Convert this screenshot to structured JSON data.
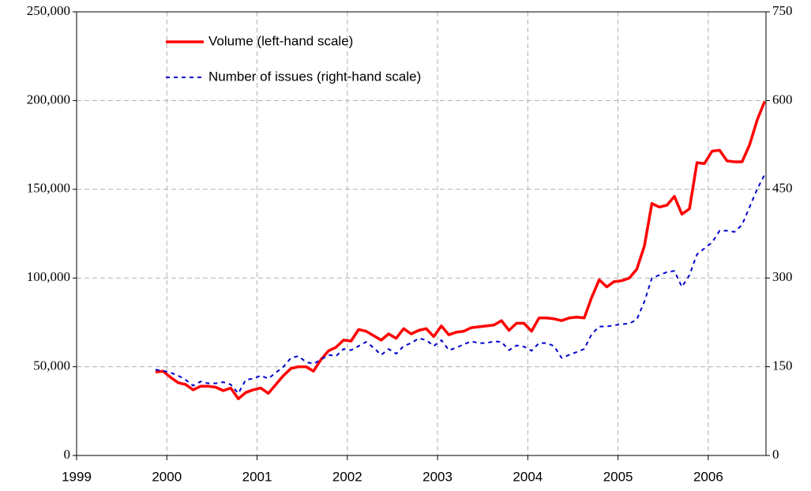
{
  "chart_data": {
    "type": "line",
    "x": [
      1999.875,
      1999.958,
      2000.042,
      2000.125,
      2000.208,
      2000.292,
      2000.375,
      2000.458,
      2000.542,
      2000.625,
      2000.708,
      2000.792,
      2000.875,
      2000.958,
      2001.042,
      2001.125,
      2001.208,
      2001.292,
      2001.375,
      2001.458,
      2001.542,
      2001.625,
      2001.708,
      2001.792,
      2001.875,
      2001.958,
      2002.042,
      2002.125,
      2002.208,
      2002.292,
      2002.375,
      2002.458,
      2002.542,
      2002.625,
      2002.708,
      2002.792,
      2002.875,
      2002.958,
      2003.042,
      2003.125,
      2003.208,
      2003.292,
      2003.375,
      2003.458,
      2003.542,
      2003.625,
      2003.708,
      2003.792,
      2003.875,
      2003.958,
      2004.042,
      2004.125,
      2004.208,
      2004.292,
      2004.375,
      2004.458,
      2004.542,
      2004.625,
      2004.708,
      2004.792,
      2004.875,
      2004.958,
      2005.042,
      2005.125,
      2005.208,
      2005.292,
      2005.375,
      2005.458,
      2005.542,
      2005.625,
      2005.708,
      2005.792,
      2005.875,
      2005.958,
      2006.042,
      2006.125,
      2006.208,
      2006.292,
      2006.375,
      2006.458,
      2006.542,
      2006.625
    ],
    "series": [
      {
        "name": "Volume (left-hand scale)",
        "color": "#ff0000",
        "dash": false,
        "values": [
          47000,
          47500,
          44000,
          41000,
          40000,
          37000,
          39000,
          39000,
          38500,
          36500,
          38000,
          32000,
          35500,
          37000,
          38000,
          35000,
          40000,
          45000,
          49000,
          50000,
          50000,
          47500,
          54000,
          59000,
          61000,
          65000,
          64500,
          71000,
          70000,
          67500,
          65000,
          68500,
          66000,
          71500,
          68500,
          70500,
          71500,
          67000,
          73000,
          68000,
          69500,
          70000,
          72000,
          72500,
          73000,
          73500,
          76000,
          70500,
          74500,
          74500,
          70000,
          77500,
          77500,
          77000,
          76000,
          77500,
          78000,
          77500,
          89000,
          99000,
          95000,
          98000,
          98500,
          100000,
          105000,
          118000,
          142000,
          140000,
          141000,
          146000,
          136000,
          139000,
          165000,
          164500,
          171500,
          172000,
          166000,
          165500,
          165500,
          175000,
          189000,
          199500
        ]
      },
      {
        "name": "Number of issues (right-hand scale)",
        "color": "#0000cc",
        "dash": true,
        "axis": "y2",
        "values": [
          145,
          143,
          140,
          135,
          128,
          118,
          125,
          122,
          122,
          124,
          120,
          105,
          128,
          130,
          135,
          130,
          140,
          150,
          165,
          168,
          158,
          155,
          162,
          170,
          168,
          180,
          178,
          185,
          192,
          182,
          170,
          180,
          172,
          185,
          190,
          198,
          195,
          185,
          195,
          178,
          182,
          188,
          193,
          190,
          190,
          193,
          192,
          178,
          186,
          184,
          177,
          190,
          190,
          185,
          165,
          170,
          175,
          180,
          205,
          218,
          218,
          220,
          222,
          223,
          230,
          260,
          300,
          305,
          310,
          312,
          285,
          305,
          340,
          350,
          360,
          380,
          380,
          378,
          390,
          420,
          450,
          475
        ]
      }
    ],
    "xlim": [
      1999,
      2006.64
    ],
    "xticks": [
      1999,
      2000,
      2001,
      2002,
      2003,
      2004,
      2005,
      2006
    ],
    "ylim": [
      0,
      250000
    ],
    "yticks": [
      0,
      {
        "value": 50000,
        "label": "50,000"
      },
      {
        "value": 100000,
        "label": "100,000"
      },
      {
        "value": 150000,
        "label": "150,000"
      },
      {
        "value": 200000,
        "label": "200,000"
      },
      {
        "value": 250000,
        "label": "250,000"
      }
    ],
    "y2lim": [
      0,
      750
    ],
    "y2ticks": [
      0,
      150,
      300,
      450,
      600,
      750
    ],
    "grid": true,
    "legend": "upper left"
  }
}
